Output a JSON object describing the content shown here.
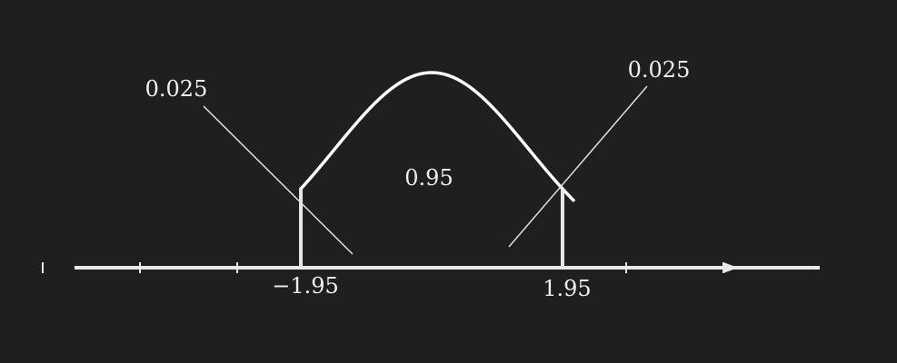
{
  "colors": {
    "background": "#1f1f1f",
    "curve": "#ffffff",
    "axis": "#e8e8e8",
    "text": "#f0f0f0",
    "leader": "#e0e0e0"
  },
  "distribution": {
    "type": "standard-normal",
    "mean": 0,
    "sd": 1
  },
  "axis": {
    "arrow": "right",
    "tick_values": [
      -4,
      -3,
      -2,
      2,
      3
    ]
  },
  "critical_values": {
    "lower": -1.95,
    "upper": 1.95,
    "lower_label": "−1.95",
    "upper_label": "1.95"
  },
  "areas": {
    "left_tail": "0.025",
    "center": "0.95",
    "right_tail": "0.025"
  }
}
